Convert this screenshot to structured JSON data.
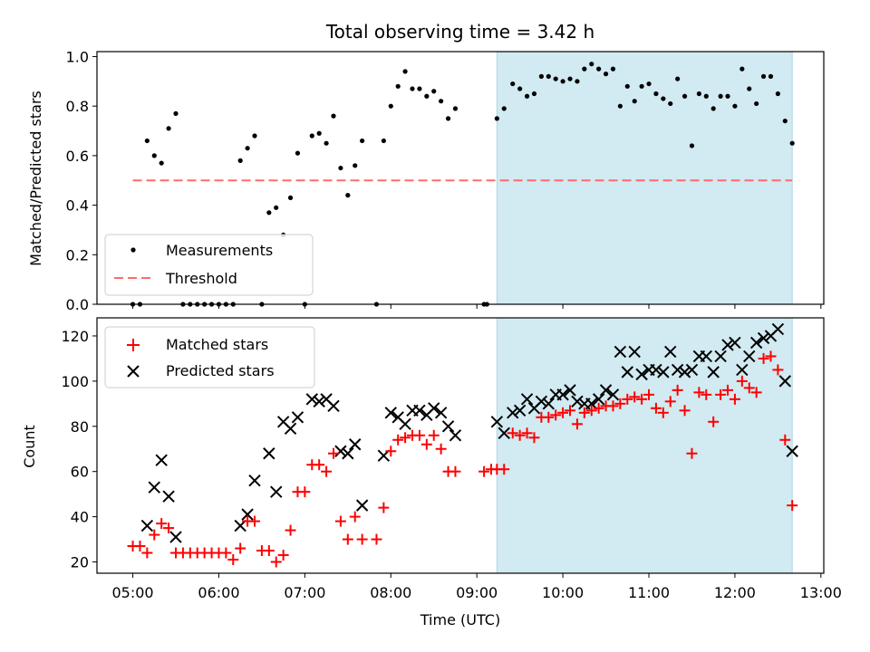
{
  "figure": {
    "title": "Total observing time = 3.42 h"
  },
  "colors": {
    "measurement": "#000000",
    "threshold": "#ff6b6b",
    "matched": "#ff0000",
    "predicted": "#000000",
    "highlight": "#add8e6"
  },
  "chart_data": [
    {
      "type": "scatter",
      "panel": "top",
      "xlabel": "",
      "ylabel": "Matched/Predicted stars",
      "ylim": [
        0,
        1.02
      ],
      "yticks": [
        "0.0",
        "0.2",
        "0.4",
        "0.6",
        "0.8",
        "1.0"
      ],
      "ytick_values": [
        0,
        0.2,
        0.4,
        0.6,
        0.8,
        1.0
      ],
      "highlight_span": [
        "09:14",
        "12:40"
      ],
      "legend": {
        "position": "lower-left",
        "entries": [
          "Measurements",
          "Threshold"
        ]
      },
      "threshold": 0.5,
      "series": [
        {
          "name": "Measurements",
          "marker": "dot",
          "points": [
            [
              "05:00",
              0
            ],
            [
              "05:05",
              0
            ],
            [
              "05:10",
              0.66
            ],
            [
              "05:15",
              0.6
            ],
            [
              "05:20",
              0.57
            ],
            [
              "05:25",
              0.71
            ],
            [
              "05:30",
              0.77
            ],
            [
              "05:35",
              0
            ],
            [
              "05:40",
              0
            ],
            [
              "05:45",
              0
            ],
            [
              "05:50",
              0
            ],
            [
              "05:55",
              0
            ],
            [
              "06:00",
              0
            ],
            [
              "06:05",
              0
            ],
            [
              "06:10",
              0
            ],
            [
              "06:15",
              0.58
            ],
            [
              "06:20",
              0.63
            ],
            [
              "06:25",
              0.68
            ],
            [
              "06:30",
              0
            ],
            [
              "06:35",
              0.37
            ],
            [
              "06:40",
              0.39
            ],
            [
              "06:45",
              0.28
            ],
            [
              "06:50",
              0.43
            ],
            [
              "06:55",
              0.61
            ],
            [
              "07:00",
              0
            ],
            [
              "07:05",
              0.68
            ],
            [
              "07:10",
              0.69
            ],
            [
              "07:15",
              0.65
            ],
            [
              "07:20",
              0.76
            ],
            [
              "07:25",
              0.55
            ],
            [
              "07:30",
              0.44
            ],
            [
              "07:35",
              0.56
            ],
            [
              "07:40",
              0.66
            ],
            [
              "07:50",
              0
            ],
            [
              "07:55",
              0.66
            ],
            [
              "08:00",
              0.8
            ],
            [
              "08:05",
              0.88
            ],
            [
              "08:10",
              0.94
            ],
            [
              "08:15",
              0.87
            ],
            [
              "08:20",
              0.87
            ],
            [
              "08:25",
              0.84
            ],
            [
              "08:30",
              0.86
            ],
            [
              "08:35",
              0.82
            ],
            [
              "08:40",
              0.75
            ],
            [
              "08:45",
              0.79
            ],
            [
              "09:05",
              0
            ],
            [
              "09:07",
              0
            ],
            [
              "09:14",
              0.75
            ],
            [
              "09:19",
              0.79
            ],
            [
              "09:25",
              0.89
            ],
            [
              "09:30",
              0.87
            ],
            [
              "09:35",
              0.84
            ],
            [
              "09:40",
              0.85
            ],
            [
              "09:45",
              0.92
            ],
            [
              "09:50",
              0.92
            ],
            [
              "09:55",
              0.91
            ],
            [
              "10:00",
              0.9
            ],
            [
              "10:05",
              0.91
            ],
            [
              "10:10",
              0.9
            ],
            [
              "10:15",
              0.95
            ],
            [
              "10:20",
              0.97
            ],
            [
              "10:25",
              0.95
            ],
            [
              "10:30",
              0.93
            ],
            [
              "10:35",
              0.95
            ],
            [
              "10:40",
              0.8
            ],
            [
              "10:45",
              0.88
            ],
            [
              "10:50",
              0.82
            ],
            [
              "10:55",
              0.88
            ],
            [
              "11:00",
              0.89
            ],
            [
              "11:05",
              0.85
            ],
            [
              "11:10",
              0.83
            ],
            [
              "11:15",
              0.81
            ],
            [
              "11:20",
              0.91
            ],
            [
              "11:25",
              0.84
            ],
            [
              "11:30",
              0.64
            ],
            [
              "11:35",
              0.85
            ],
            [
              "11:40",
              0.84
            ],
            [
              "11:45",
              0.79
            ],
            [
              "11:50",
              0.84
            ],
            [
              "11:55",
              0.84
            ],
            [
              "12:00",
              0.8
            ],
            [
              "12:05",
              0.95
            ],
            [
              "12:10",
              0.87
            ],
            [
              "12:15",
              0.81
            ],
            [
              "12:20",
              0.92
            ],
            [
              "12:25",
              0.92
            ],
            [
              "12:30",
              0.85
            ],
            [
              "12:35",
              0.74
            ],
            [
              "12:40",
              0.65
            ]
          ]
        }
      ]
    },
    {
      "type": "scatter",
      "panel": "bottom",
      "xlabel": "Time (UTC)",
      "ylabel": "Count",
      "ylim": [
        15,
        128
      ],
      "yticks": [
        "20",
        "40",
        "60",
        "80",
        "100",
        "120"
      ],
      "ytick_values": [
        20,
        40,
        60,
        80,
        100,
        120
      ],
      "xticks": [
        "05:00",
        "06:00",
        "07:00",
        "08:00",
        "09:00",
        "10:00",
        "11:00",
        "12:00",
        "13:00"
      ],
      "xlim": [
        "04:35",
        "13:02"
      ],
      "highlight_span": [
        "09:14",
        "12:40"
      ],
      "legend": {
        "position": "upper-left",
        "entries": [
          "Matched stars",
          "Predicted stars"
        ]
      },
      "series": [
        {
          "name": "Matched stars",
          "marker": "plus",
          "points": [
            [
              "05:00",
              27
            ],
            [
              "05:05",
              27
            ],
            [
              "05:10",
              24
            ],
            [
              "05:15",
              32
            ],
            [
              "05:20",
              37
            ],
            [
              "05:25",
              35
            ],
            [
              "05:30",
              24
            ],
            [
              "05:35",
              24
            ],
            [
              "05:40",
              24
            ],
            [
              "05:45",
              24
            ],
            [
              "05:50",
              24
            ],
            [
              "05:55",
              24
            ],
            [
              "06:00",
              24
            ],
            [
              "06:05",
              24
            ],
            [
              "06:10",
              21
            ],
            [
              "06:15",
              26
            ],
            [
              "06:20",
              38
            ],
            [
              "06:25",
              38
            ],
            [
              "06:30",
              25
            ],
            [
              "06:35",
              25
            ],
            [
              "06:40",
              20
            ],
            [
              "06:45",
              23
            ],
            [
              "06:50",
              34
            ],
            [
              "06:55",
              51
            ],
            [
              "07:00",
              51
            ],
            [
              "07:05",
              63
            ],
            [
              "07:10",
              63
            ],
            [
              "07:15",
              60
            ],
            [
              "07:20",
              68
            ],
            [
              "07:25",
              38
            ],
            [
              "07:30",
              30
            ],
            [
              "07:35",
              40
            ],
            [
              "07:40",
              30
            ],
            [
              "07:50",
              30
            ],
            [
              "07:55",
              44
            ],
            [
              "08:00",
              69
            ],
            [
              "08:05",
              74
            ],
            [
              "08:10",
              75
            ],
            [
              "08:15",
              76
            ],
            [
              "08:20",
              76
            ],
            [
              "08:25",
              72
            ],
            [
              "08:30",
              76
            ],
            [
              "08:35",
              70
            ],
            [
              "08:40",
              60
            ],
            [
              "08:45",
              60
            ],
            [
              "09:05",
              60
            ],
            [
              "09:10",
              61
            ],
            [
              "09:14",
              61
            ],
            [
              "09:19",
              61
            ],
            [
              "09:25",
              77
            ],
            [
              "09:30",
              76
            ],
            [
              "09:35",
              77
            ],
            [
              "09:40",
              75
            ],
            [
              "09:45",
              84
            ],
            [
              "09:50",
              84
            ],
            [
              "09:55",
              85
            ],
            [
              "10:00",
              86
            ],
            [
              "10:05",
              87
            ],
            [
              "10:10",
              81
            ],
            [
              "10:15",
              86
            ],
            [
              "10:20",
              87
            ],
            [
              "10:25",
              88
            ],
            [
              "10:30",
              89
            ],
            [
              "10:35",
              89
            ],
            [
              "10:40",
              90
            ],
            [
              "10:45",
              92
            ],
            [
              "10:50",
              93
            ],
            [
              "10:55",
              92
            ],
            [
              "11:00",
              94
            ],
            [
              "11:05",
              88
            ],
            [
              "11:10",
              86
            ],
            [
              "11:15",
              91
            ],
            [
              "11:20",
              96
            ],
            [
              "11:25",
              87
            ],
            [
              "11:30",
              68
            ],
            [
              "11:35",
              95
            ],
            [
              "11:40",
              94
            ],
            [
              "11:45",
              82
            ],
            [
              "11:50",
              94
            ],
            [
              "11:55",
              96
            ],
            [
              "12:00",
              92
            ],
            [
              "12:05",
              100
            ],
            [
              "12:10",
              97
            ],
            [
              "12:15",
              95
            ],
            [
              "12:20",
              110
            ],
            [
              "12:25",
              111
            ],
            [
              "12:30",
              105
            ],
            [
              "12:35",
              74
            ],
            [
              "12:40",
              45
            ]
          ]
        },
        {
          "name": "Predicted stars",
          "marker": "x",
          "points": [
            [
              "05:10",
              36
            ],
            [
              "05:15",
              53
            ],
            [
              "05:20",
              65
            ],
            [
              "05:25",
              49
            ],
            [
              "05:30",
              31
            ],
            [
              "06:15",
              36
            ],
            [
              "06:20",
              41
            ],
            [
              "06:25",
              56
            ],
            [
              "06:35",
              68
            ],
            [
              "06:40",
              51
            ],
            [
              "06:45",
              82
            ],
            [
              "06:50",
              79
            ],
            [
              "06:55",
              84
            ],
            [
              "07:05",
              92
            ],
            [
              "07:10",
              91
            ],
            [
              "07:15",
              92
            ],
            [
              "07:20",
              89
            ],
            [
              "07:25",
              69
            ],
            [
              "07:30",
              68
            ],
            [
              "07:35",
              72
            ],
            [
              "07:40",
              45
            ],
            [
              "07:55",
              67
            ],
            [
              "08:00",
              86
            ],
            [
              "08:05",
              84
            ],
            [
              "08:10",
              81
            ],
            [
              "08:15",
              87
            ],
            [
              "08:20",
              87
            ],
            [
              "08:25",
              85
            ],
            [
              "08:30",
              88
            ],
            [
              "08:35",
              86
            ],
            [
              "08:40",
              80
            ],
            [
              "08:45",
              76
            ],
            [
              "09:14",
              82
            ],
            [
              "09:19",
              77
            ],
            [
              "09:25",
              86
            ],
            [
              "09:30",
              87
            ],
            [
              "09:35",
              92
            ],
            [
              "09:40",
              88
            ],
            [
              "09:45",
              91
            ],
            [
              "09:50",
              90
            ],
            [
              "09:55",
              94
            ],
            [
              "10:00",
              94
            ],
            [
              "10:05",
              96
            ],
            [
              "10:10",
              91
            ],
            [
              "10:15",
              90
            ],
            [
              "10:20",
              90
            ],
            [
              "10:25",
              92
            ],
            [
              "10:30",
              96
            ],
            [
              "10:35",
              94
            ],
            [
              "10:40",
              113
            ],
            [
              "10:45",
              104
            ],
            [
              "10:50",
              113
            ],
            [
              "10:55",
              103
            ],
            [
              "11:00",
              105
            ],
            [
              "11:05",
              105
            ],
            [
              "11:10",
              104
            ],
            [
              "11:15",
              113
            ],
            [
              "11:20",
              105
            ],
            [
              "11:25",
              104
            ],
            [
              "11:30",
              105
            ],
            [
              "11:35",
              111
            ],
            [
              "11:40",
              111
            ],
            [
              "11:45",
              104
            ],
            [
              "11:50",
              111
            ],
            [
              "11:55",
              116
            ],
            [
              "12:00",
              117
            ],
            [
              "12:05",
              105
            ],
            [
              "12:10",
              111
            ],
            [
              "12:15",
              117
            ],
            [
              "12:20",
              119
            ],
            [
              "12:25",
              120
            ],
            [
              "12:30",
              123
            ],
            [
              "12:35",
              100
            ],
            [
              "12:40",
              69
            ]
          ]
        }
      ]
    }
  ]
}
